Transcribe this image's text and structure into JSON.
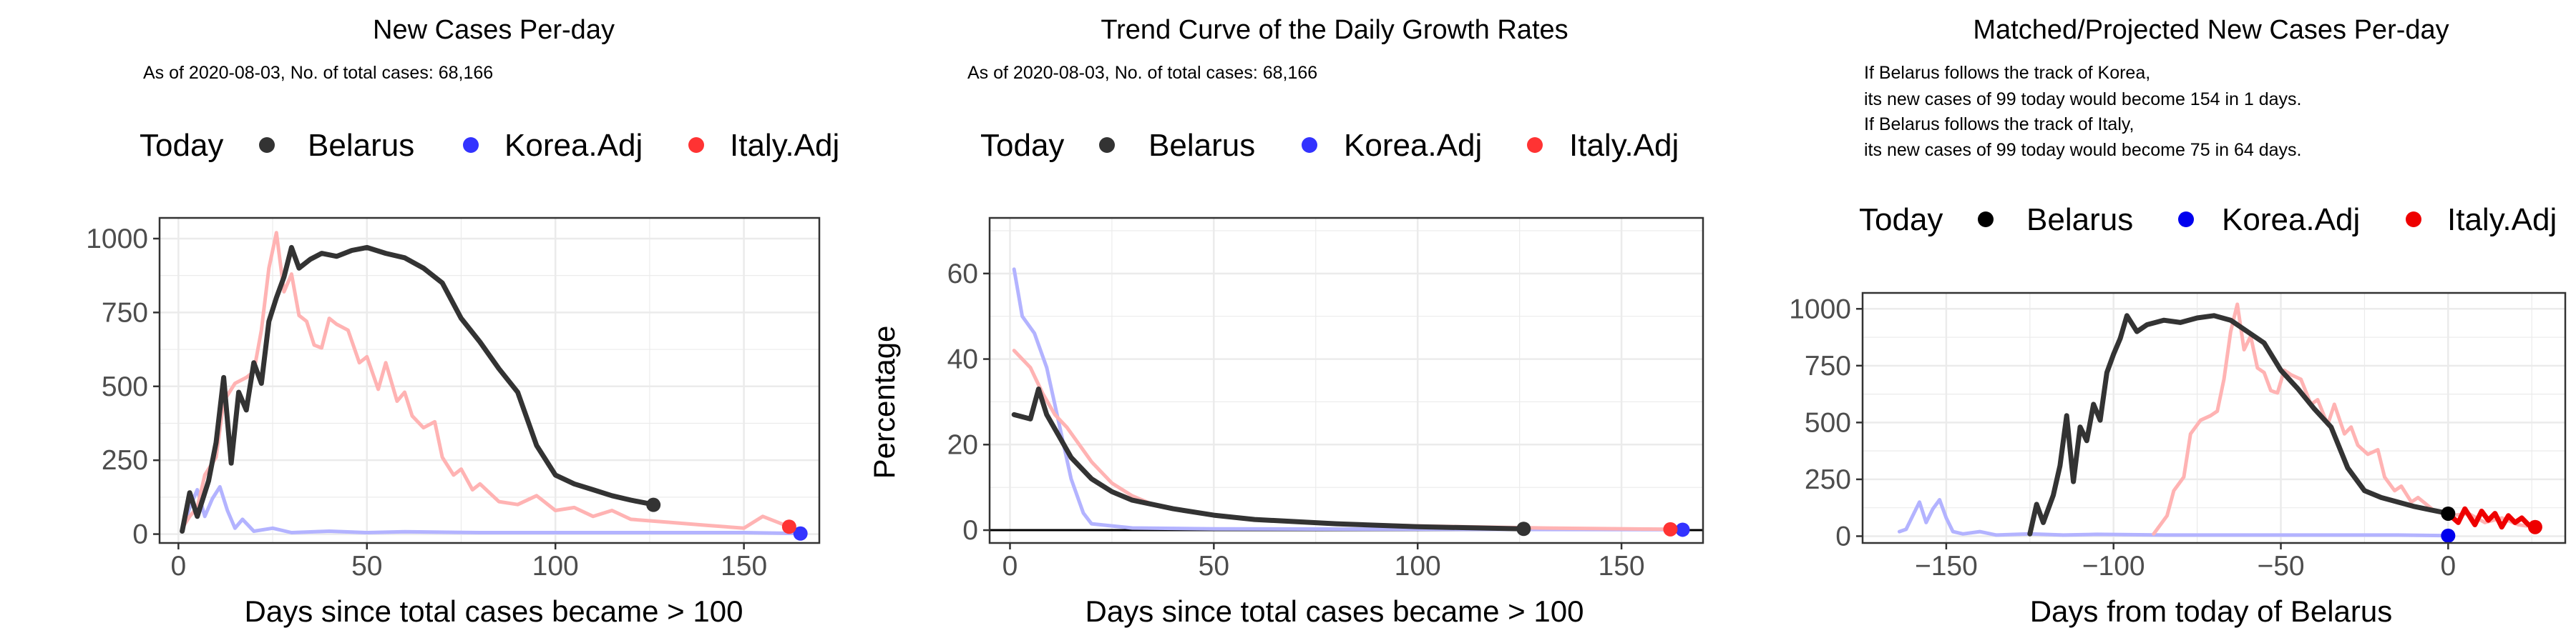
{
  "colors": {
    "belarus": "#333333",
    "korea_line": "#b3b3ff",
    "italy_line": "#ffb3b3",
    "korea_dot": "#3333ff",
    "italy_dot": "#ff3333",
    "korea_dot_p3": "#0000ee",
    "italy_dot_p3": "#ee0000",
    "today_dot_p3": "#000000"
  },
  "legend": {
    "today": "Today",
    "belarus": "Belarus",
    "korea": "Korea.Adj",
    "italy": "Italy.Adj"
  },
  "chart_data": [
    {
      "type": "line",
      "title": "New Cases Per-day",
      "subtitle": "As of 2020-08-03, No. of total cases: 68,166",
      "xlabel": "Days since total cases became > 100",
      "ylabel": "",
      "xlim": [
        -5,
        170
      ],
      "ylim": [
        -30,
        1070
      ],
      "xticks": [
        0,
        50,
        100,
        150
      ],
      "yticks": [
        0,
        250,
        500,
        750,
        1000
      ],
      "series": [
        {
          "name": "Belarus",
          "x": [
            1,
            3,
            5,
            8,
            10,
            12,
            14,
            16,
            18,
            20,
            22,
            24,
            26,
            28,
            30,
            32,
            35,
            38,
            42,
            46,
            50,
            55,
            60,
            65,
            70,
            75,
            80,
            85,
            90,
            95,
            100,
            105,
            110,
            115,
            120,
            126
          ],
          "y": [
            10,
            140,
            60,
            180,
            310,
            530,
            240,
            480,
            420,
            580,
            510,
            720,
            800,
            870,
            970,
            900,
            930,
            950,
            940,
            960,
            970,
            950,
            935,
            900,
            850,
            730,
            650,
            560,
            480,
            300,
            200,
            170,
            150,
            130,
            115,
            100
          ]
        },
        {
          "name": "Korea.Adj",
          "x": [
            1,
            3,
            5,
            7,
            9,
            11,
            13,
            15,
            17,
            20,
            25,
            30,
            40,
            50,
            60,
            80,
            100,
            120,
            140,
            150,
            165
          ],
          "y": [
            10,
            90,
            150,
            60,
            120,
            160,
            80,
            20,
            50,
            10,
            20,
            5,
            10,
            5,
            8,
            5,
            5,
            5,
            5,
            5,
            2
          ]
        },
        {
          "name": "Italy.Adj",
          "x": [
            1,
            3,
            5,
            7,
            10,
            12,
            15,
            18,
            20,
            22,
            24,
            26,
            28,
            30,
            32,
            34,
            36,
            38,
            40,
            42,
            45,
            48,
            50,
            53,
            55,
            58,
            60,
            62,
            65,
            68,
            70,
            73,
            75,
            78,
            80,
            85,
            90,
            95,
            100,
            105,
            110,
            115,
            120,
            130,
            140,
            150,
            155,
            162
          ],
          "y": [
            20,
            60,
            90,
            200,
            260,
            450,
            510,
            530,
            550,
            690,
            900,
            1020,
            820,
            880,
            740,
            720,
            640,
            630,
            730,
            710,
            690,
            580,
            600,
            490,
            580,
            450,
            480,
            400,
            360,
            380,
            260,
            200,
            220,
            150,
            170,
            110,
            100,
            130,
            80,
            90,
            60,
            80,
            50,
            40,
            30,
            20,
            60,
            25
          ]
        }
      ],
      "today_points": [
        {
          "series": "Belarus",
          "x": 126,
          "y": 99
        },
        {
          "series": "Korea.Adj",
          "x": 165,
          "y": 2
        },
        {
          "series": "Italy.Adj",
          "x": 162,
          "y": 25
        }
      ]
    },
    {
      "type": "line",
      "title": "Trend Curve of the Daily Growth Rates",
      "subtitle": "As of 2020-08-03, No. of total cases: 68,166",
      "xlabel": "Days since total cases became > 100",
      "ylabel": "Percentage",
      "xlim": [
        -5,
        170
      ],
      "ylim": [
        -3,
        73
      ],
      "xticks": [
        0,
        50,
        100,
        150
      ],
      "yticks": [
        0,
        20,
        40,
        60
      ],
      "hline": 0,
      "series": [
        {
          "name": "Belarus",
          "x": [
            1,
            3,
            5,
            7,
            9,
            12,
            15,
            20,
            25,
            30,
            40,
            50,
            60,
            80,
            100,
            126
          ],
          "y": [
            27,
            26.5,
            26,
            33,
            27,
            22,
            17,
            12,
            9,
            7,
            5,
            3.5,
            2.5,
            1.5,
            0.8,
            0.3
          ]
        },
        {
          "name": "Korea.Adj",
          "x": [
            1,
            3,
            6,
            9,
            12,
            15,
            18,
            20,
            25,
            30,
            50,
            100,
            165
          ],
          "y": [
            61,
            50,
            46,
            38,
            25,
            12,
            4,
            1.5,
            1,
            0.5,
            0.3,
            0.2,
            0.1
          ]
        },
        {
          "name": "Italy.Adj",
          "x": [
            1,
            3,
            5,
            8,
            11,
            14,
            17,
            20,
            25,
            30,
            35,
            40,
            50,
            60,
            80,
            100,
            130,
            162
          ],
          "y": [
            42,
            40,
            38,
            32,
            27,
            24,
            20,
            16,
            11,
            8,
            6,
            5,
            3.5,
            2.5,
            1.5,
            1,
            0.5,
            0.2
          ]
        }
      ],
      "today_points": [
        {
          "series": "Belarus",
          "x": 126,
          "y": 0.3
        },
        {
          "series": "Korea.Adj",
          "x": 165,
          "y": 0.1
        },
        {
          "series": "Italy.Adj",
          "x": 162,
          "y": 0.2
        }
      ]
    },
    {
      "type": "line",
      "title": "Matched/Projected New Cases Per-day",
      "annotation": [
        "If Belarus follows the track of Korea,",
        "its new cases of 99 today would become 154 in 1 days.",
        "If Belarus follows the track of Italy,",
        "its new cases of 99 today would become 75 in 64 days."
      ],
      "xlabel": "Days from today of Belarus",
      "ylabel": "",
      "xlim": [
        -175,
        35
      ],
      "ylim": [
        -30,
        1070
      ],
      "xticks": [
        -150,
        -100,
        -50,
        0
      ],
      "yticks": [
        0,
        250,
        500,
        750,
        1000
      ],
      "series": [
        {
          "name": "Belarus",
          "x": [
            -125,
            -123,
            -121,
            -118,
            -116,
            -114,
            -112,
            -110,
            -108,
            -106,
            -104,
            -102,
            -100,
            -98,
            -96,
            -93,
            -90,
            -85,
            -80,
            -75,
            -70,
            -65,
            -60,
            -55,
            -50,
            -45,
            -40,
            -35,
            -30,
            -25,
            -20,
            -15,
            -10,
            -5,
            0
          ],
          "y": [
            10,
            140,
            60,
            180,
            310,
            530,
            240,
            480,
            420,
            580,
            510,
            720,
            800,
            870,
            970,
            900,
            930,
            950,
            940,
            960,
            970,
            950,
            900,
            850,
            730,
            650,
            560,
            480,
            300,
            200,
            170,
            150,
            130,
            115,
            100
          ]
        },
        {
          "name": "Korea.Adj",
          "x": [
            -164,
            -162,
            -160,
            -158,
            -156,
            -154,
            -152,
            -150,
            -148,
            -145,
            -140,
            -135,
            -125,
            -115,
            -105,
            -85,
            -65,
            -45,
            -25,
            -15,
            0
          ],
          "y": [
            20,
            30,
            90,
            150,
            60,
            120,
            160,
            80,
            20,
            10,
            20,
            5,
            10,
            5,
            8,
            5,
            5,
            5,
            5,
            5,
            2
          ]
        },
        {
          "name": "Italy.Adj",
          "x": [
            -88,
            -86,
            -84,
            -82,
            -79,
            -77,
            -74,
            -71,
            -69,
            -67,
            -65,
            -63,
            -61,
            -59,
            -57,
            -55,
            -53,
            -51,
            -49,
            -47,
            -44,
            -41,
            -39,
            -36,
            -34,
            -31,
            -29,
            -27,
            -24,
            -21,
            -19,
            -16,
            -14,
            -11,
            -9,
            -4,
            1,
            6,
            11,
            16,
            21,
            26
          ],
          "y": [
            10,
            50,
            90,
            200,
            260,
            450,
            510,
            530,
            550,
            690,
            900,
            1020,
            820,
            880,
            740,
            720,
            640,
            630,
            730,
            710,
            690,
            580,
            600,
            490,
            580,
            450,
            480,
            400,
            360,
            380,
            260,
            200,
            220,
            150,
            170,
            110,
            90,
            100,
            60,
            80,
            50,
            40
          ]
        },
        {
          "name": "Projection (Italy.Adj)",
          "x": [
            0,
            3,
            5,
            8,
            10,
            12,
            14,
            16,
            18,
            20,
            22,
            24,
            26
          ],
          "y": [
            99,
            60,
            120,
            50,
            110,
            70,
            100,
            40,
            90,
            60,
            80,
            50,
            40
          ]
        }
      ],
      "today_points": [
        {
          "series": "Today",
          "x": 0,
          "y": 99
        },
        {
          "series": "Korea.Adj",
          "x": 0,
          "y": 2
        },
        {
          "series": "Italy.Adj",
          "x": 26,
          "y": 40
        }
      ]
    }
  ]
}
